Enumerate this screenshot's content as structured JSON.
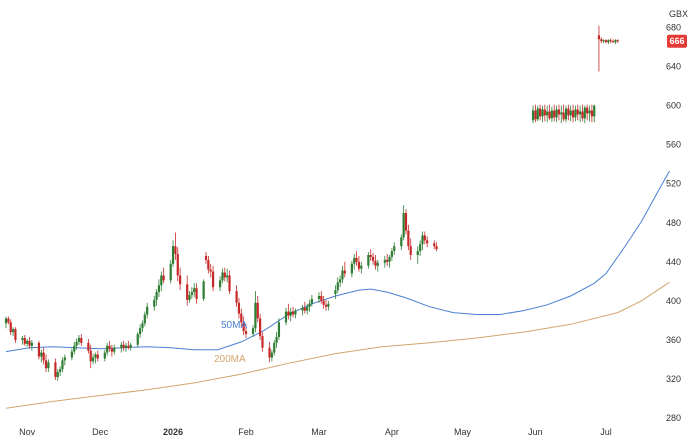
{
  "chart_data": {
    "type": "candlestick",
    "currency_label": "GBX",
    "last_price_label": "666",
    "y_range": [
      280,
      700
    ],
    "y_ticks": [
      "280",
      "320",
      "360",
      "400",
      "440",
      "480",
      "520",
      "560",
      "600",
      "640",
      "680"
    ],
    "x_ticks": [
      {
        "label": "Nov",
        "day": 9,
        "bold": false
      },
      {
        "label": "Dec",
        "day": 40,
        "bold": false
      },
      {
        "label": "2026",
        "day": 71,
        "bold": true
      },
      {
        "label": "Feb",
        "day": 102,
        "bold": false
      },
      {
        "label": "Mar",
        "day": 133,
        "bold": false
      },
      {
        "label": "Apr",
        "day": 164,
        "bold": false
      },
      {
        "label": "May",
        "day": 194,
        "bold": false
      },
      {
        "label": "Jun",
        "day": 225,
        "bold": false
      },
      {
        "label": "Jul",
        "day": 255,
        "bold": false
      }
    ],
    "x_range": [
      0,
      272
    ],
    "colors": {
      "up": "#2e7d32",
      "down": "#c62828",
      "ma50": "#4a7fd4",
      "ma200": "#d2a56e",
      "price_tag": "#e53935"
    },
    "ma50_label": "50MA",
    "ma200_label": "200MA",
    "ma50": [
      [
        0,
        348
      ],
      [
        10,
        352
      ],
      [
        20,
        353
      ],
      [
        30,
        352
      ],
      [
        40,
        351
      ],
      [
        50,
        352
      ],
      [
        60,
        353
      ],
      [
        70,
        352
      ],
      [
        80,
        350
      ],
      [
        90,
        350
      ],
      [
        100,
        358
      ],
      [
        110,
        370
      ],
      [
        120,
        386
      ],
      [
        130,
        397
      ],
      [
        140,
        405
      ],
      [
        150,
        411
      ],
      [
        155,
        412
      ],
      [
        162,
        409
      ],
      [
        170,
        403
      ],
      [
        180,
        394
      ],
      [
        190,
        388
      ],
      [
        200,
        386
      ],
      [
        210,
        386
      ],
      [
        220,
        390
      ],
      [
        230,
        396
      ],
      [
        240,
        405
      ],
      [
        250,
        418
      ],
      [
        255,
        428
      ],
      [
        262,
        452
      ],
      [
        270,
        481
      ],
      [
        278,
        516
      ],
      [
        282,
        533
      ]
    ],
    "ma200": [
      [
        0,
        290
      ],
      [
        20,
        297
      ],
      [
        40,
        303
      ],
      [
        60,
        309
      ],
      [
        80,
        316
      ],
      [
        100,
        325
      ],
      [
        120,
        336
      ],
      [
        140,
        346
      ],
      [
        160,
        353
      ],
      [
        170,
        355
      ],
      [
        180,
        357
      ],
      [
        200,
        362
      ],
      [
        220,
        368
      ],
      [
        240,
        376
      ],
      [
        260,
        388
      ],
      [
        270,
        400
      ],
      [
        282,
        419
      ]
    ],
    "candles": [
      [
        0,
        377,
        384,
        372,
        382
      ],
      [
        1,
        382,
        384,
        376,
        378
      ],
      [
        2,
        378,
        381,
        365,
        368
      ],
      [
        3,
        368,
        373,
        364,
        371
      ],
      [
        4,
        371,
        373,
        357,
        360
      ],
      [
        7,
        360,
        364,
        355,
        362
      ],
      [
        8,
        362,
        365,
        354,
        356
      ],
      [
        9,
        356,
        361,
        353,
        359
      ],
      [
        10,
        359,
        363,
        351,
        354
      ],
      [
        11,
        354,
        360,
        349,
        357
      ],
      [
        14,
        357,
        359,
        340,
        343
      ],
      [
        15,
        343,
        350,
        337,
        347
      ],
      [
        16,
        347,
        352,
        335,
        339
      ],
      [
        17,
        339,
        345,
        327,
        331
      ],
      [
        18,
        331,
        340,
        327,
        337
      ],
      [
        21,
        337,
        341,
        319,
        322
      ],
      [
        22,
        322,
        330,
        318,
        327
      ],
      [
        23,
        327,
        333,
        323,
        330
      ],
      [
        24,
        330,
        342,
        327,
        339
      ],
      [
        25,
        339,
        345,
        334,
        342
      ],
      [
        28,
        342,
        351,
        339,
        348
      ],
      [
        29,
        348,
        358,
        345,
        354
      ],
      [
        30,
        354,
        361,
        350,
        358
      ],
      [
        31,
        358,
        365,
        355,
        362
      ],
      [
        32,
        362,
        366,
        354,
        357
      ],
      [
        35,
        357,
        361,
        346,
        349
      ],
      [
        36,
        349,
        355,
        331,
        338
      ],
      [
        37,
        338,
        346,
        335,
        342
      ],
      [
        38,
        342,
        347,
        336,
        345
      ],
      [
        39,
        345,
        349,
        338,
        341
      ],
      [
        42,
        341,
        350,
        338,
        347
      ],
      [
        43,
        347,
        357,
        344,
        354
      ],
      [
        44,
        354,
        359,
        348,
        351
      ],
      [
        45,
        351,
        355,
        343,
        348
      ],
      [
        46,
        348,
        355,
        345,
        352
      ],
      [
        49,
        352,
        358,
        347,
        355
      ],
      [
        50,
        355,
        359,
        349,
        352
      ],
      [
        51,
        352,
        357,
        348,
        354
      ],
      [
        52,
        354,
        359,
        350,
        352
      ],
      [
        53,
        352,
        357,
        349,
        355
      ],
      [
        56,
        355,
        368,
        353,
        366
      ],
      [
        57,
        366,
        376,
        362,
        372
      ],
      [
        58,
        372,
        380,
        368,
        377
      ],
      [
        59,
        377,
        389,
        374,
        386
      ],
      [
        60,
        386,
        398,
        382,
        394
      ],
      [
        63,
        394,
        405,
        390,
        401
      ],
      [
        64,
        401,
        412,
        395,
        409
      ],
      [
        65,
        409,
        422,
        404,
        416
      ],
      [
        66,
        416,
        430,
        410,
        426
      ],
      [
        67,
        426,
        434,
        418,
        421
      ],
      [
        70,
        421,
        442,
        418,
        438
      ],
      [
        71,
        438,
        462,
        435,
        456
      ],
      [
        72,
        456,
        470,
        442,
        448
      ],
      [
        73,
        448,
        455,
        420,
        426
      ],
      [
        74,
        426,
        434,
        411,
        417
      ],
      [
        77,
        417,
        426,
        395,
        401
      ],
      [
        78,
        401,
        410,
        398,
        406
      ],
      [
        79,
        406,
        414,
        402,
        409
      ],
      [
        80,
        409,
        418,
        404,
        413
      ],
      [
        81,
        413,
        418,
        397,
        402
      ],
      [
        84,
        402,
        422,
        400,
        420
      ],
      [
        85,
        446,
        450,
        438,
        442
      ],
      [
        86,
        442,
        446,
        428,
        432
      ],
      [
        87,
        432,
        438,
        424,
        430
      ],
      [
        88,
        430,
        436,
        410,
        414
      ],
      [
        91,
        414,
        425,
        410,
        421
      ],
      [
        92,
        421,
        433,
        418,
        429
      ],
      [
        93,
        429,
        434,
        420,
        424
      ],
      [
        94,
        424,
        433,
        419,
        426
      ],
      [
        95,
        426,
        431,
        407,
        410
      ],
      [
        98,
        410,
        416,
        394,
        398
      ],
      [
        99,
        398,
        403,
        382,
        387
      ],
      [
        100,
        387,
        392,
        373,
        378
      ],
      [
        101,
        378,
        384,
        365,
        369
      ],
      [
        102,
        369,
        376,
        362,
        366
      ],
      [
        105,
        366,
        375,
        363,
        372
      ],
      [
        106,
        372,
        410,
        368,
        398
      ],
      [
        107,
        398,
        405,
        378,
        382
      ],
      [
        108,
        382,
        387,
        360,
        364
      ],
      [
        109,
        364,
        368,
        348,
        352
      ],
      [
        112,
        352,
        358,
        337,
        342
      ],
      [
        113,
        342,
        350,
        338,
        347
      ],
      [
        114,
        347,
        360,
        344,
        357
      ],
      [
        115,
        357,
        368,
        352,
        363
      ],
      [
        116,
        363,
        382,
        360,
        378
      ],
      [
        119,
        378,
        393,
        375,
        389
      ],
      [
        120,
        389,
        397,
        381,
        385
      ],
      [
        121,
        385,
        393,
        379,
        389
      ],
      [
        122,
        389,
        394,
        383,
        386
      ],
      [
        123,
        386,
        392,
        382,
        390
      ],
      [
        126,
        390,
        396,
        385,
        393
      ],
      [
        127,
        393,
        399,
        387,
        390
      ],
      [
        128,
        390,
        397,
        386,
        394
      ],
      [
        129,
        394,
        401,
        389,
        397
      ],
      [
        130,
        397,
        406,
        394,
        402
      ],
      [
        133,
        402,
        409,
        398,
        405
      ],
      [
        134,
        405,
        410,
        397,
        400
      ],
      [
        135,
        400,
        405,
        392,
        396
      ],
      [
        136,
        396,
        401,
        390,
        394
      ],
      [
        137,
        394,
        400,
        390,
        397
      ],
      [
        140,
        407,
        416,
        402,
        411
      ],
      [
        141,
        411,
        424,
        408,
        419
      ],
      [
        142,
        419,
        426,
        414,
        422
      ],
      [
        143,
        422,
        436,
        418,
        431
      ],
      [
        144,
        431,
        440,
        424,
        428
      ],
      [
        147,
        428,
        441,
        424,
        438
      ],
      [
        148,
        438,
        448,
        432,
        444
      ],
      [
        149,
        444,
        451,
        436,
        440
      ],
      [
        150,
        440,
        446,
        430,
        433
      ],
      [
        151,
        433,
        440,
        428,
        436
      ],
      [
        154,
        436,
        450,
        433,
        447
      ],
      [
        155,
        447,
        453,
        441,
        445
      ],
      [
        156,
        445,
        449,
        437,
        441
      ],
      [
        157,
        441,
        447,
        432,
        436
      ],
      [
        158,
        436,
        442,
        430,
        439
      ],
      [
        161,
        439,
        446,
        434,
        442
      ],
      [
        162,
        442,
        448,
        436,
        440
      ],
      [
        163,
        440,
        447,
        434,
        445
      ],
      [
        164,
        445,
        454,
        441,
        451
      ],
      [
        165,
        451,
        460,
        447,
        456
      ],
      [
        168,
        456,
        468,
        452,
        465
      ],
      [
        169,
        465,
        498,
        462,
        490
      ],
      [
        170,
        490,
        494,
        468,
        472
      ],
      [
        171,
        472,
        478,
        452,
        456
      ],
      [
        172,
        456,
        464,
        442,
        447
      ],
      [
        175,
        447,
        456,
        438,
        451
      ],
      [
        176,
        451,
        462,
        446,
        458
      ],
      [
        177,
        458,
        471,
        452,
        467
      ],
      [
        178,
        467,
        471,
        458,
        462
      ],
      [
        179,
        462,
        466,
        455,
        459
      ],
      [
        182,
        459,
        462,
        453,
        456
      ],
      [
        183,
        456,
        460,
        451,
        453
      ],
      [
        224,
        585,
        600,
        582,
        595
      ],
      [
        225,
        595,
        601,
        583,
        586
      ],
      [
        226,
        586,
        600,
        584,
        597
      ],
      [
        227,
        597,
        601,
        585,
        589
      ],
      [
        228,
        589,
        600,
        583,
        596
      ],
      [
        229,
        596,
        601,
        584,
        590
      ],
      [
        230,
        590,
        600,
        583,
        594
      ],
      [
        231,
        594,
        601,
        585,
        587
      ],
      [
        232,
        587,
        599,
        583,
        595
      ],
      [
        233,
        595,
        601,
        584,
        588
      ],
      [
        234,
        588,
        600,
        583,
        596
      ],
      [
        235,
        596,
        601,
        585,
        591
      ],
      [
        236,
        591,
        600,
        582,
        593
      ],
      [
        237,
        593,
        601,
        584,
        586
      ],
      [
        238,
        586,
        600,
        583,
        597
      ],
      [
        239,
        597,
        601,
        585,
        590
      ],
      [
        240,
        590,
        600,
        584,
        595
      ],
      [
        241,
        595,
        601,
        583,
        588
      ],
      [
        242,
        588,
        600,
        584,
        596
      ],
      [
        243,
        596,
        601,
        585,
        591
      ],
      [
        244,
        591,
        600,
        583,
        594
      ],
      [
        245,
        594,
        601,
        584,
        587
      ],
      [
        246,
        587,
        600,
        582,
        598
      ],
      [
        247,
        598,
        601,
        585,
        592
      ],
      [
        248,
        592,
        600,
        584,
        595
      ],
      [
        249,
        595,
        601,
        583,
        589
      ],
      [
        250,
        589,
        601,
        583,
        600
      ],
      [
        252,
        672,
        682,
        635,
        668
      ],
      [
        253,
        668,
        670,
        664,
        666
      ],
      [
        254,
        666,
        668,
        664,
        667
      ],
      [
        255,
        667,
        668,
        664,
        665
      ],
      [
        256,
        665,
        668,
        663,
        667
      ],
      [
        257,
        667,
        669,
        664,
        666
      ],
      [
        258,
        666,
        668,
        664,
        665
      ],
      [
        259,
        665,
        668,
        663,
        667
      ],
      [
        260,
        667,
        668,
        664,
        666
      ]
    ]
  }
}
